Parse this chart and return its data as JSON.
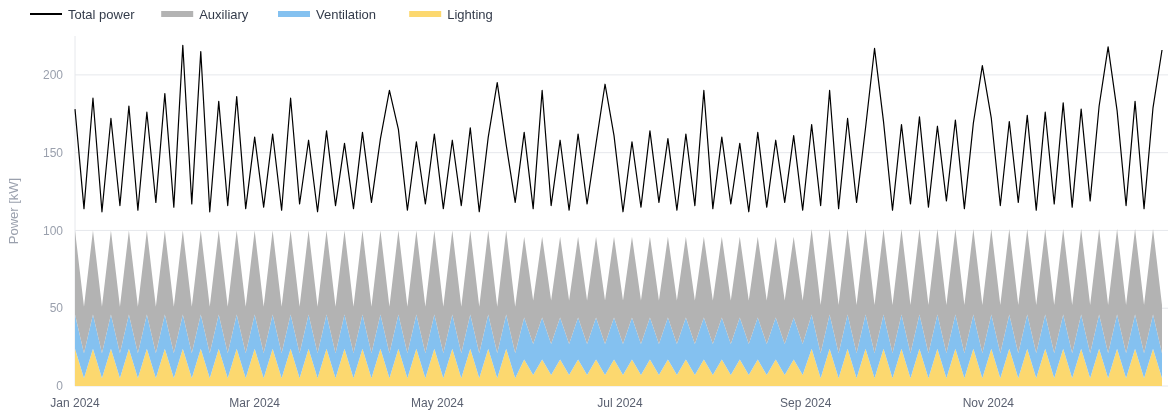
{
  "chart_data": {
    "type": "area",
    "stacked": true,
    "ylabel": "Power [kW]",
    "legend": "top left",
    "grid": "y",
    "xlim": [
      "2024-01-01",
      "2024-12-31"
    ],
    "ylim": [
      0,
      225
    ],
    "yticks": [
      0,
      50,
      100,
      150,
      200
    ],
    "xticks": [
      {
        "value": "2024-01-01",
        "label": "Jan 2024"
      },
      {
        "value": "2024-03-01",
        "label": "Mar 2024"
      },
      {
        "value": "2024-05-01",
        "label": "May 2024"
      },
      {
        "value": "2024-07-01",
        "label": "Jul 2024"
      },
      {
        "value": "2024-09-01",
        "label": "Sep 2024"
      },
      {
        "value": "2024-11-01",
        "label": "Nov 2024"
      }
    ],
    "x": [
      "2024-01-01",
      "2024-01-04",
      "2024-01-07",
      "2024-01-10",
      "2024-01-13",
      "2024-01-16",
      "2024-01-19",
      "2024-01-22",
      "2024-01-25",
      "2024-01-28",
      "2024-01-31",
      "2024-02-03",
      "2024-02-06",
      "2024-02-09",
      "2024-02-12",
      "2024-02-15",
      "2024-02-18",
      "2024-02-21",
      "2024-02-24",
      "2024-02-27",
      "2024-03-01",
      "2024-03-04",
      "2024-03-07",
      "2024-03-10",
      "2024-03-13",
      "2024-03-16",
      "2024-03-19",
      "2024-03-22",
      "2024-03-25",
      "2024-03-28",
      "2024-03-31",
      "2024-04-03",
      "2024-04-06",
      "2024-04-09",
      "2024-04-12",
      "2024-04-15",
      "2024-04-18",
      "2024-04-21",
      "2024-04-24",
      "2024-04-27",
      "2024-04-30",
      "2024-05-03",
      "2024-05-06",
      "2024-05-09",
      "2024-05-12",
      "2024-05-15",
      "2024-05-18",
      "2024-05-21",
      "2024-05-24",
      "2024-05-27",
      "2024-05-30",
      "2024-06-02",
      "2024-06-05",
      "2024-06-08",
      "2024-06-11",
      "2024-06-14",
      "2024-06-17",
      "2024-06-20",
      "2024-06-23",
      "2024-06-26",
      "2024-06-29",
      "2024-07-02",
      "2024-07-05",
      "2024-07-08",
      "2024-07-11",
      "2024-07-14",
      "2024-07-17",
      "2024-07-20",
      "2024-07-23",
      "2024-07-26",
      "2024-07-29",
      "2024-08-01",
      "2024-08-04",
      "2024-08-07",
      "2024-08-10",
      "2024-08-13",
      "2024-08-16",
      "2024-08-19",
      "2024-08-22",
      "2024-08-25",
      "2024-08-28",
      "2024-08-31",
      "2024-09-03",
      "2024-09-06",
      "2024-09-09",
      "2024-09-12",
      "2024-09-15",
      "2024-09-18",
      "2024-09-21",
      "2024-09-24",
      "2024-09-27",
      "2024-09-30",
      "2024-10-03",
      "2024-10-06",
      "2024-10-09",
      "2024-10-12",
      "2024-10-15",
      "2024-10-18",
      "2024-10-21",
      "2024-10-24",
      "2024-10-27",
      "2024-10-30",
      "2024-11-02",
      "2024-11-05",
      "2024-11-08",
      "2024-11-11",
      "2024-11-14",
      "2024-11-17",
      "2024-11-20",
      "2024-11-23",
      "2024-11-26",
      "2024-11-29",
      "2024-12-02",
      "2024-12-05",
      "2024-12-08",
      "2024-12-11",
      "2024-12-14",
      "2024-12-17",
      "2024-12-20",
      "2024-12-23",
      "2024-12-26",
      "2024-12-29"
    ],
    "series": [
      {
        "name": "Total power",
        "type": "line",
        "color": "#000000",
        "values": [
          178,
          114,
          185,
          112,
          172,
          116,
          180,
          113,
          176,
          118,
          188,
          115,
          219,
          117,
          215,
          112,
          183,
          116,
          186,
          114,
          160,
          115,
          162,
          113,
          185,
          117,
          158,
          112,
          164,
          116,
          156,
          114,
          163,
          118,
          159,
          190,
          165,
          113,
          157,
          117,
          162,
          114,
          158,
          116,
          166,
          112,
          160,
          195,
          155,
          118,
          163,
          114,
          190,
          116,
          158,
          113,
          162,
          117,
          156,
          194,
          161,
          112,
          157,
          115,
          164,
          118,
          159,
          113,
          162,
          116,
          190,
          114,
          160,
          117,
          156,
          112,
          163,
          115,
          158,
          118,
          161,
          113,
          168,
          116,
          190,
          114,
          172,
          118,
          166,
          217,
          170,
          113,
          168,
          117,
          173,
          115,
          167,
          119,
          171,
          114,
          169,
          206,
          172,
          116,
          170,
          118,
          174,
          113,
          176,
          117,
          182,
          115,
          178,
          119,
          180,
          218,
          177,
          116,
          183,
          114,
          179,
          216
        ]
      },
      {
        "name": "Lighting",
        "color": "#fcd86f",
        "values": [
          24,
          5,
          24,
          5,
          24,
          5,
          24,
          5,
          24,
          5,
          24,
          5,
          24,
          5,
          24,
          5,
          24,
          5,
          24,
          5,
          24,
          5,
          24,
          5,
          24,
          5,
          24,
          5,
          24,
          5,
          24,
          5,
          24,
          5,
          24,
          5,
          24,
          5,
          24,
          5,
          24,
          5,
          24,
          5,
          24,
          5,
          24,
          5,
          24,
          5,
          17,
          7,
          17,
          7,
          17,
          7,
          17,
          7,
          17,
          7,
          17,
          7,
          17,
          7,
          17,
          7,
          17,
          7,
          17,
          7,
          17,
          7,
          17,
          7,
          17,
          7,
          17,
          7,
          17,
          7,
          17,
          7,
          24,
          5,
          24,
          5,
          24,
          5,
          24,
          5,
          24,
          5,
          24,
          5,
          24,
          5,
          24,
          5,
          24,
          5,
          24,
          5,
          24,
          5,
          24,
          5,
          24,
          5,
          24,
          5,
          24,
          5,
          24,
          5,
          24,
          5,
          24,
          5,
          24,
          5,
          24,
          5
        ]
      },
      {
        "name": "Ventilation",
        "color": "#84c1f0",
        "values": [
          22,
          16,
          22,
          16,
          22,
          16,
          22,
          16,
          22,
          16,
          22,
          16,
          22,
          16,
          22,
          16,
          22,
          16,
          22,
          16,
          22,
          16,
          22,
          16,
          22,
          16,
          22,
          16,
          22,
          16,
          22,
          16,
          22,
          16,
          22,
          16,
          22,
          16,
          22,
          16,
          22,
          16,
          22,
          16,
          22,
          16,
          22,
          16,
          22,
          16,
          27,
          20,
          27,
          20,
          27,
          20,
          27,
          20,
          27,
          20,
          27,
          20,
          27,
          20,
          27,
          20,
          27,
          20,
          27,
          20,
          27,
          20,
          27,
          20,
          27,
          20,
          27,
          20,
          27,
          20,
          27,
          20,
          22,
          16,
          22,
          16,
          22,
          16,
          22,
          16,
          22,
          16,
          22,
          16,
          22,
          16,
          22,
          16,
          22,
          16,
          22,
          16,
          22,
          16,
          22,
          16,
          22,
          16,
          22,
          16,
          22,
          16,
          22,
          16,
          22,
          16,
          22,
          16,
          22,
          16,
          22,
          16
        ]
      },
      {
        "name": "Auxiliary",
        "color": "#b3b3b3",
        "values": [
          54,
          30,
          54,
          30,
          54,
          30,
          54,
          30,
          54,
          30,
          54,
          30,
          54,
          30,
          54,
          30,
          54,
          30,
          54,
          30,
          54,
          30,
          54,
          30,
          54,
          30,
          54,
          30,
          54,
          30,
          54,
          30,
          54,
          30,
          54,
          30,
          54,
          30,
          54,
          30,
          54,
          30,
          54,
          30,
          54,
          30,
          54,
          30,
          54,
          30,
          52,
          28,
          52,
          28,
          52,
          28,
          52,
          28,
          52,
          28,
          52,
          28,
          52,
          28,
          52,
          28,
          52,
          28,
          52,
          28,
          52,
          28,
          52,
          28,
          52,
          28,
          52,
          28,
          52,
          28,
          52,
          28,
          55,
          31,
          55,
          31,
          55,
          31,
          55,
          31,
          55,
          31,
          55,
          31,
          55,
          31,
          55,
          31,
          55,
          31,
          55,
          31,
          55,
          31,
          55,
          31,
          55,
          31,
          55,
          31,
          55,
          31,
          55,
          31,
          55,
          31,
          55,
          31,
          55,
          31,
          55,
          31
        ]
      }
    ]
  }
}
